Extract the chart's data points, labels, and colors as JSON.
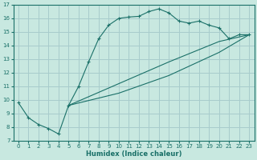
{
  "xlabel": "Humidex (Indice chaleur)",
  "background_color": "#c8e8e0",
  "grid_color": "#a8cccc",
  "line_color": "#1a7068",
  "xlim": [
    -0.5,
    23.5
  ],
  "ylim": [
    7,
    17
  ],
  "yticks": [
    7,
    8,
    9,
    10,
    11,
    12,
    13,
    14,
    15,
    16,
    17
  ],
  "xticks": [
    0,
    1,
    2,
    3,
    4,
    5,
    6,
    7,
    8,
    9,
    10,
    11,
    12,
    13,
    14,
    15,
    16,
    17,
    18,
    19,
    20,
    21,
    22,
    23
  ],
  "main_x": [
    0,
    1,
    2,
    3,
    4,
    5,
    6,
    7,
    8,
    9,
    10,
    11,
    12,
    13,
    14,
    15,
    16,
    17,
    18,
    19,
    20,
    21,
    22,
    23
  ],
  "main_y": [
    9.8,
    8.7,
    8.2,
    7.9,
    7.5,
    9.6,
    11.0,
    12.8,
    14.5,
    15.5,
    16.0,
    16.1,
    16.15,
    16.5,
    16.7,
    16.4,
    15.8,
    15.65,
    15.8,
    15.5,
    15.3,
    14.5,
    14.8,
    14.8
  ],
  "line2_x": [
    5,
    23
  ],
  "line2_y": [
    9.6,
    14.8
  ],
  "line3_x": [
    5,
    23
  ],
  "line3_y": [
    9.6,
    14.8
  ],
  "line3_waypoints_x": [
    5,
    10,
    15,
    20,
    23
  ],
  "line3_waypoints_y": [
    9.6,
    11.2,
    12.8,
    14.3,
    14.8
  ],
  "line4_waypoints_x": [
    5,
    10,
    15,
    20,
    23
  ],
  "line4_waypoints_y": [
    9.6,
    10.5,
    11.8,
    13.5,
    14.8
  ]
}
